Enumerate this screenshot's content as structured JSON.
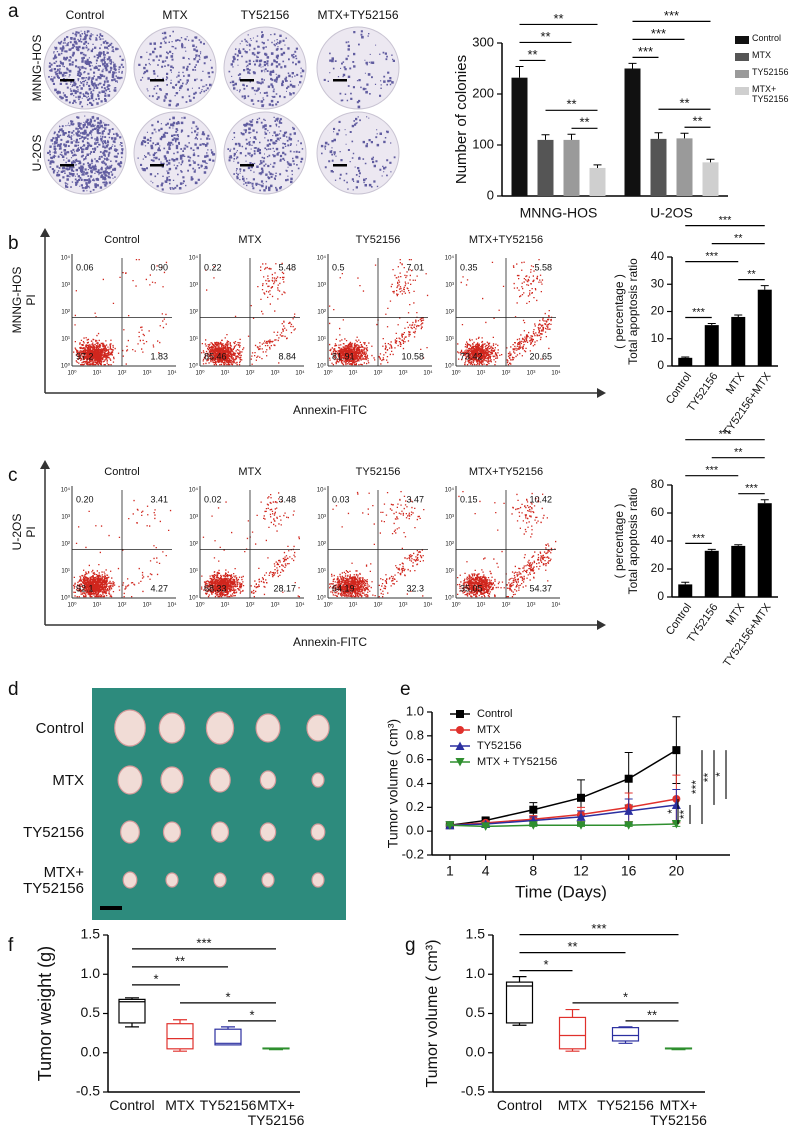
{
  "colony_panel": {
    "panel": "a",
    "columns": [
      "Control",
      "MTX",
      "TY52156",
      "MTX+TY52156"
    ],
    "rows": [
      "MNNG-HOS",
      "U-2OS"
    ]
  },
  "flow_panels": [
    {
      "panel": "b",
      "ylabel": [
        "MNNG-HOS",
        "PI"
      ],
      "xlabel": "Annexin-FITC",
      "tick_labels": [
        "10⁰",
        "10¹",
        "10²",
        "10³",
        "10⁴"
      ],
      "plots": [
        {
          "title": "Control",
          "quadrants": {
            "upper_left": "0.06",
            "upper_right": "0.90",
            "lower_left": "97.2",
            "lower_right": "1.83"
          }
        },
        {
          "title": "MTX",
          "quadrants": {
            "upper_left": "0.22",
            "upper_right": "5.48",
            "lower_left": "85.46",
            "lower_right": "8.84"
          }
        },
        {
          "title": "TY52156",
          "quadrants": {
            "upper_left": "0.5",
            "upper_right": "7.01",
            "lower_left": "81.91",
            "lower_right": "10.58"
          }
        },
        {
          "title": "MTX+TY52156",
          "quadrants": {
            "upper_left": "0.35",
            "upper_right": "5.58",
            "lower_left": "73.42",
            "lower_right": "20.65"
          }
        }
      ]
    },
    {
      "panel": "c",
      "ylabel": [
        "U-2OS",
        "PI"
      ],
      "xlabel": "Annexin-FITC",
      "tick_labels": [
        "10⁰",
        "10¹",
        "10²",
        "10³",
        "10⁴"
      ],
      "plots": [
        {
          "title": "Control",
          "quadrants": {
            "upper_left": "0.20",
            "upper_right": "3.41",
            "lower_left": "92.1",
            "lower_right": "4.27"
          }
        },
        {
          "title": "MTX",
          "quadrants": {
            "upper_left": "0.02",
            "upper_right": "3.48",
            "lower_left": "68.33",
            "lower_right": "28.17"
          }
        },
        {
          "title": "TY52156",
          "quadrants": {
            "upper_left": "0.03",
            "upper_right": "3.47",
            "lower_left": "64.19",
            "lower_right": "32.3"
          }
        },
        {
          "title": "MTX+TY52156",
          "quadrants": {
            "upper_left": "0.15",
            "upper_right": "10.42",
            "lower_left": "35.05",
            "lower_right": "54.37"
          }
        }
      ]
    }
  ],
  "tumor_photo": {
    "panel": "d",
    "rows": [
      "Control",
      "MTX",
      "TY52156",
      "MTX+ TY52156"
    ]
  },
  "chart_data": [
    {
      "type": "bar",
      "ylabel": "Number of colonies",
      "categories": [
        "MNNG-HOS",
        "U-2OS"
      ],
      "ylim": [
        0,
        300
      ],
      "yticks": [
        0,
        100,
        200,
        300
      ],
      "legend": "right",
      "series": [
        {
          "name": "Control",
          "color": "#111111",
          "values": [
            232,
            250
          ],
          "errors": [
            22,
            10
          ]
        },
        {
          "name": "MTX",
          "color": "#555555",
          "values": [
            110,
            112
          ],
          "errors": [
            10,
            12
          ]
        },
        {
          "name": "TY52156",
          "color": "#9a9a9a",
          "values": [
            110,
            113
          ],
          "errors": [
            11,
            10
          ]
        },
        {
          "name": "MTX+ TY52156",
          "color": "#cfcfcf",
          "values": [
            55,
            66
          ],
          "errors": [
            6,
            6
          ]
        }
      ],
      "comparisons": [
        {
          "category": "MNNG-HOS",
          "pair": [
            "TY52156",
            "MTX+ TY52156"
          ],
          "label": "**"
        },
        {
          "category": "MNNG-HOS",
          "pair": [
            "MTX",
            "MTX+ TY52156"
          ],
          "label": "**"
        },
        {
          "category": "MNNG-HOS",
          "pair": [
            "Control",
            "MTX"
          ],
          "label": "**"
        },
        {
          "category": "MNNG-HOS",
          "pair": [
            "Control",
            "TY52156"
          ],
          "label": "**"
        },
        {
          "category": "MNNG-HOS",
          "pair": [
            "Control",
            "MTX+ TY52156"
          ],
          "label": "**"
        },
        {
          "category": "U-2OS",
          "pair": [
            "TY52156",
            "MTX+ TY52156"
          ],
          "label": "**"
        },
        {
          "category": "U-2OS",
          "pair": [
            "MTX",
            "MTX+ TY52156"
          ],
          "label": "**"
        },
        {
          "category": "U-2OS",
          "pair": [
            "Control",
            "MTX"
          ],
          "label": "***"
        },
        {
          "category": "U-2OS",
          "pair": [
            "Control",
            "TY52156"
          ],
          "label": "***"
        },
        {
          "category": "U-2OS",
          "pair": [
            "Control",
            "MTX+ TY52156"
          ],
          "label": "***"
        }
      ]
    },
    {
      "type": "bar",
      "ylabel": [
        "Total apoptosis ratio",
        "( percentage )"
      ],
      "categories": [
        "Control",
        "TY52156",
        "MTX",
        "TY52156+MTX"
      ],
      "values": [
        3,
        15,
        18,
        28
      ],
      "errors": [
        0.3,
        0.6,
        0.7,
        1.5
      ],
      "color": "#000000",
      "ylim": [
        0,
        40
      ],
      "yticks": [
        0,
        10,
        20,
        30,
        40
      ],
      "comparisons": [
        {
          "pair": [
            "Control",
            "TY52156"
          ],
          "label": "***"
        },
        {
          "pair": [
            "MTX",
            "TY52156+MTX"
          ],
          "label": "**"
        },
        {
          "pair": [
            "Control",
            "MTX"
          ],
          "label": "***"
        },
        {
          "pair": [
            "TY52156",
            "TY52156+MTX"
          ],
          "label": "**"
        },
        {
          "pair": [
            "Control",
            "TY52156+MTX"
          ],
          "label": "***"
        }
      ]
    },
    {
      "type": "bar",
      "ylabel": [
        "Total apoptosis ratio",
        "( percentage )"
      ],
      "categories": [
        "Control",
        "TY52156",
        "MTX",
        "TY52156+MTX"
      ],
      "values": [
        9,
        33,
        36.5,
        67
      ],
      "errors": [
        1.5,
        1,
        0.8,
        2.5
      ],
      "color": "#000000",
      "ylim": [
        0,
        80
      ],
      "yticks": [
        0,
        20,
        40,
        60,
        80
      ],
      "comparisons": [
        {
          "pair": [
            "Control",
            "TY52156"
          ],
          "label": "***"
        },
        {
          "pair": [
            "MTX",
            "TY52156+MTX"
          ],
          "label": "***"
        },
        {
          "pair": [
            "Control",
            "MTX"
          ],
          "label": "***"
        },
        {
          "pair": [
            "TY52156",
            "TY52156+MTX"
          ],
          "label": "**"
        },
        {
          "pair": [
            "Control",
            "TY52156+MTX"
          ],
          "label": "***"
        }
      ]
    },
    {
      "panel": "e",
      "type": "line",
      "xlabel": "Time (Days)",
      "ylabel": "Tumor volume ( cm³)",
      "x": [
        1,
        4,
        8,
        12,
        16,
        20
      ],
      "xlim": [
        -0.5,
        24.5
      ],
      "xticks": [
        1,
        4,
        8,
        12,
        16,
        20
      ],
      "ylim": [
        -0.2,
        1.0
      ],
      "yticks": [
        -0.2,
        {
          "value": 0,
          "label": "0.0"
        },
        0.2,
        0.4,
        0.6,
        0.8,
        {
          "value": 1,
          "label": "1.0"
        }
      ],
      "legend": "upper left",
      "series": [
        {
          "name": "Control",
          "color": "#000000",
          "marker": "square",
          "values": [
            0.05,
            0.09,
            0.18,
            0.28,
            0.44,
            0.68
          ],
          "errors": [
            0.01,
            0.02,
            0.06,
            0.15,
            0.22,
            0.28
          ]
        },
        {
          "name": "MTX",
          "color": "#e0312c",
          "marker": "circle",
          "values": [
            0.05,
            0.07,
            0.1,
            0.14,
            0.2,
            0.27
          ],
          "errors": [
            0.005,
            0.01,
            0.03,
            0.06,
            0.12,
            0.2
          ]
        },
        {
          "name": "TY52156",
          "color": "#2b2fa0",
          "marker": "triangle",
          "values": [
            0.05,
            0.06,
            0.09,
            0.12,
            0.17,
            0.22
          ],
          "errors": [
            0.005,
            0.01,
            0.03,
            0.05,
            0.1,
            0.13
          ]
        },
        {
          "name": "MTX + TY52156",
          "color": "#2f8f2f",
          "marker": "triangle-down",
          "values": [
            0.05,
            0.04,
            0.05,
            0.05,
            0.05,
            0.06
          ],
          "errors": [
            0.005,
            0.005,
            0.01,
            0.01,
            0.01,
            0.02
          ]
        }
      ],
      "comparisons": [
        {
          "pair": [
            "MTX + TY52156",
            "MTX"
          ],
          "label": "*"
        },
        {
          "pair": [
            "MTX + TY52156",
            "TY52156"
          ],
          "label": "**"
        },
        {
          "pair": [
            "MTX + TY52156",
            "Control"
          ],
          "label": "***"
        },
        {
          "pair": [
            "TY52156",
            "Control"
          ],
          "label": "**"
        },
        {
          "pair": [
            "MTX",
            "Control"
          ],
          "label": "*"
        }
      ]
    },
    {
      "panel": "f",
      "type": "box",
      "ylabel": "Tumor weight (g)",
      "categories": [
        "Control",
        "MTX",
        "TY52156",
        "MTX+ TY52156"
      ],
      "colors": [
        "#000000",
        "#e0312c",
        "#2b2fa0",
        "#2f8f2f"
      ],
      "boxes": [
        {
          "min": 0.33,
          "q1": 0.38,
          "median": 0.65,
          "q3": 0.68,
          "max": 0.7
        },
        {
          "min": 0.02,
          "q1": 0.05,
          "median": 0.18,
          "q3": 0.37,
          "max": 0.42
        },
        {
          "min": 0.1,
          "q1": 0.1,
          "median": 0.12,
          "q3": 0.3,
          "max": 0.33
        },
        {
          "min": 0.04,
          "q1": 0.05,
          "median": 0.05,
          "q3": 0.06,
          "max": 0.06
        }
      ],
      "ylim": [
        -0.5,
        1.5
      ],
      "yticks": [
        -0.5,
        {
          "value": 0,
          "label": "0.0"
        },
        0.5,
        {
          "value": 1,
          "label": "1.0"
        },
        1.5
      ],
      "comparisons": [
        {
          "pair": [
            "TY52156",
            "MTX+ TY52156"
          ],
          "label": "*"
        },
        {
          "pair": [
            "MTX",
            "MTX+ TY52156"
          ],
          "label": "*"
        },
        {
          "pair": [
            "Control",
            "MTX"
          ],
          "label": "*"
        },
        {
          "pair": [
            "Control",
            "TY52156"
          ],
          "label": "**"
        },
        {
          "pair": [
            "Control",
            "MTX+ TY52156"
          ],
          "label": "***"
        }
      ]
    },
    {
      "panel": "g",
      "type": "box",
      "ylabel": "Tumor volume ( cm³)",
      "categories": [
        "Control",
        "MTX",
        "TY52156",
        "MTX+ TY52156"
      ],
      "colors": [
        "#000000",
        "#e0312c",
        "#2b2fa0",
        "#2f8f2f"
      ],
      "boxes": [
        {
          "min": 0.35,
          "q1": 0.38,
          "median": 0.85,
          "q3": 0.9,
          "max": 0.97
        },
        {
          "min": 0.02,
          "q1": 0.05,
          "median": 0.22,
          "q3": 0.45,
          "max": 0.55
        },
        {
          "min": 0.12,
          "q1": 0.15,
          "median": 0.22,
          "q3": 0.32,
          "max": 0.33
        },
        {
          "min": 0.04,
          "q1": 0.05,
          "median": 0.05,
          "q3": 0.06,
          "max": 0.06
        }
      ],
      "ylim": [
        -0.5,
        1.5
      ],
      "yticks": [
        -0.5,
        {
          "value": 0,
          "label": "0.0"
        },
        0.5,
        {
          "value": 1,
          "label": "1.0"
        },
        1.5
      ],
      "comparisons": [
        {
          "pair": [
            "TY52156",
            "MTX+ TY52156"
          ],
          "label": "**"
        },
        {
          "pair": [
            "MTX",
            "MTX+ TY52156"
          ],
          "label": "*"
        },
        {
          "pair": [
            "Control",
            "MTX"
          ],
          "label": "*"
        },
        {
          "pair": [
            "Control",
            "TY52156"
          ],
          "label": "**"
        },
        {
          "pair": [
            "Control",
            "MTX+ TY52156"
          ],
          "label": "***"
        }
      ]
    }
  ]
}
